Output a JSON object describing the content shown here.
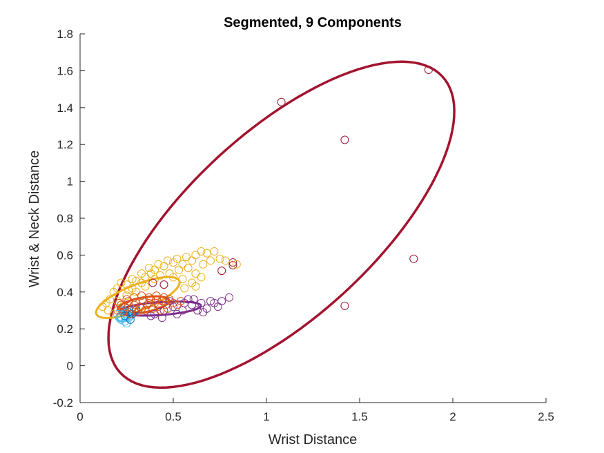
{
  "chart_data": {
    "type": "scatter",
    "title": "Segmented, 9 Components",
    "xlabel": "Wrist Distance",
    "ylabel": "Wrist & Neck Distance",
    "xlim": [
      0,
      2.5
    ],
    "ylim": [
      -0.2,
      1.8
    ],
    "xticks": [
      0,
      0.5,
      1,
      1.5,
      2,
      2.5
    ],
    "yticks": [
      -0.2,
      0,
      0.2,
      0.4,
      0.6,
      0.8,
      1,
      1.2,
      1.4,
      1.6,
      1.8
    ],
    "xtick_labels": [
      "0",
      "0.5",
      "1",
      "1.5",
      "2",
      "2.5"
    ],
    "ytick_labels": [
      "-0.2",
      "0",
      "0.2",
      "0.4",
      "0.6",
      "0.8",
      "1",
      "1.2",
      "1.4",
      "1.6",
      "1.8"
    ],
    "marker": "open-circle",
    "grid": false,
    "legend": false,
    "series": [
      {
        "color": "#A2142F",
        "points": [
          [
            1.87,
            1.605
          ],
          [
            1.08,
            1.43
          ],
          [
            1.42,
            1.225
          ],
          [
            1.79,
            0.58
          ],
          [
            1.42,
            0.325
          ],
          [
            0.82,
            0.56
          ],
          [
            0.82,
            0.545
          ],
          [
            0.76,
            0.515
          ],
          [
            0.45,
            0.44
          ],
          [
            0.39,
            0.45
          ]
        ]
      },
      {
        "color": "#EDB120",
        "points": [
          [
            0.12,
            0.32
          ],
          [
            0.15,
            0.3
          ],
          [
            0.16,
            0.36
          ],
          [
            0.18,
            0.4
          ],
          [
            0.2,
            0.42
          ],
          [
            0.22,
            0.45
          ],
          [
            0.25,
            0.44
          ],
          [
            0.28,
            0.47
          ],
          [
            0.3,
            0.46
          ],
          [
            0.33,
            0.5
          ],
          [
            0.35,
            0.48
          ],
          [
            0.37,
            0.53
          ],
          [
            0.4,
            0.52
          ],
          [
            0.42,
            0.55
          ],
          [
            0.45,
            0.54
          ],
          [
            0.47,
            0.57
          ],
          [
            0.5,
            0.56
          ],
          [
            0.52,
            0.58
          ],
          [
            0.55,
            0.55
          ],
          [
            0.57,
            0.59
          ],
          [
            0.6,
            0.57
          ],
          [
            0.62,
            0.6
          ],
          [
            0.65,
            0.62
          ],
          [
            0.68,
            0.61
          ],
          [
            0.7,
            0.57
          ],
          [
            0.72,
            0.62
          ],
          [
            0.75,
            0.58
          ],
          [
            0.78,
            0.57
          ],
          [
            0.84,
            0.55
          ],
          [
            0.62,
            0.5
          ],
          [
            0.55,
            0.47
          ],
          [
            0.6,
            0.45
          ],
          [
            0.65,
            0.48
          ],
          [
            0.48,
            0.5
          ],
          [
            0.4,
            0.47
          ],
          [
            0.35,
            0.43
          ],
          [
            0.3,
            0.4
          ],
          [
            0.25,
            0.38
          ],
          [
            0.2,
            0.35
          ],
          [
            0.18,
            0.28
          ],
          [
            0.22,
            0.25
          ],
          [
            0.28,
            0.42
          ],
          [
            0.33,
            0.45
          ],
          [
            0.43,
            0.49
          ],
          [
            0.53,
            0.52
          ],
          [
            0.58,
            0.53
          ],
          [
            0.66,
            0.55
          ],
          [
            0.14,
            0.34
          ],
          [
            0.26,
            0.41
          ],
          [
            0.38,
            0.5
          ],
          [
            0.5,
            0.48
          ],
          [
            0.56,
            0.42
          ],
          [
            0.62,
            0.43
          ]
        ]
      },
      {
        "color": "#7E2F8E",
        "points": [
          [
            0.3,
            0.31
          ],
          [
            0.35,
            0.3
          ],
          [
            0.4,
            0.28
          ],
          [
            0.45,
            0.3
          ],
          [
            0.5,
            0.32
          ],
          [
            0.55,
            0.3
          ],
          [
            0.6,
            0.33
          ],
          [
            0.63,
            0.3
          ],
          [
            0.65,
            0.34
          ],
          [
            0.68,
            0.31
          ],
          [
            0.7,
            0.35
          ],
          [
            0.72,
            0.34
          ],
          [
            0.74,
            0.32
          ],
          [
            0.76,
            0.35
          ],
          [
            0.8,
            0.37
          ],
          [
            0.58,
            0.36
          ],
          [
            0.52,
            0.28
          ],
          [
            0.48,
            0.35
          ],
          [
            0.42,
            0.33
          ],
          [
            0.38,
            0.27
          ],
          [
            0.56,
            0.34
          ],
          [
            0.66,
            0.29
          ],
          [
            0.61,
            0.36
          ],
          [
            0.44,
            0.26
          ]
        ]
      },
      {
        "color": "#4DBEEE",
        "points": [
          [
            0.22,
            0.25
          ],
          [
            0.24,
            0.24
          ],
          [
            0.26,
            0.26
          ],
          [
            0.2,
            0.28
          ],
          [
            0.23,
            0.3
          ],
          [
            0.27,
            0.27
          ],
          [
            0.25,
            0.23
          ],
          [
            0.21,
            0.26
          ]
        ]
      },
      {
        "color": "#0072BD",
        "points": [
          [
            0.24,
            0.27
          ],
          [
            0.26,
            0.29
          ],
          [
            0.28,
            0.28
          ],
          [
            0.3,
            0.3
          ],
          [
            0.25,
            0.31
          ],
          [
            0.27,
            0.25
          ]
        ]
      },
      {
        "color": "#D95319",
        "points": [
          [
            0.2,
            0.3
          ],
          [
            0.22,
            0.33
          ],
          [
            0.24,
            0.32
          ],
          [
            0.26,
            0.35
          ],
          [
            0.28,
            0.31
          ],
          [
            0.3,
            0.34
          ],
          [
            0.32,
            0.32
          ],
          [
            0.34,
            0.35
          ],
          [
            0.36,
            0.33
          ],
          [
            0.38,
            0.36
          ],
          [
            0.4,
            0.34
          ],
          [
            0.42,
            0.32
          ],
          [
            0.44,
            0.35
          ],
          [
            0.46,
            0.33
          ],
          [
            0.48,
            0.36
          ],
          [
            0.5,
            0.34
          ],
          [
            0.27,
            0.28
          ],
          [
            0.31,
            0.29
          ],
          [
            0.35,
            0.3
          ],
          [
            0.39,
            0.31
          ],
          [
            0.43,
            0.3
          ],
          [
            0.25,
            0.36
          ],
          [
            0.29,
            0.37
          ],
          [
            0.33,
            0.38
          ],
          [
            0.37,
            0.37
          ],
          [
            0.41,
            0.38
          ],
          [
            0.45,
            0.37
          ],
          [
            0.23,
            0.29
          ],
          [
            0.21,
            0.34
          ],
          [
            0.52,
            0.33
          ],
          [
            0.54,
            0.35
          ],
          [
            0.29,
            0.33
          ],
          [
            0.33,
            0.31
          ],
          [
            0.37,
            0.34
          ],
          [
            0.41,
            0.36
          ],
          [
            0.47,
            0.31
          ]
        ]
      }
    ],
    "ellipses": [
      {
        "color": "#A2142F",
        "cx": 1.08,
        "cy": 0.765,
        "rx": 1.18,
        "ry": 0.5,
        "angle": 43
      },
      {
        "color": "#EDB120",
        "cx": 0.31,
        "cy": 0.37,
        "rx": 0.24,
        "ry": 0.07,
        "angle": 22
      },
      {
        "color": "#7E2F8E",
        "cx": 0.43,
        "cy": 0.31,
        "rx": 0.22,
        "ry": 0.035,
        "angle": 4
      },
      {
        "color": "#D95319",
        "cx": 0.34,
        "cy": 0.33,
        "rx": 0.14,
        "ry": 0.04,
        "angle": 10
      },
      {
        "color": "#4DBEEE",
        "cx": 0.235,
        "cy": 0.27,
        "rx": 0.04,
        "ry": 0.028,
        "angle": 20
      }
    ]
  }
}
